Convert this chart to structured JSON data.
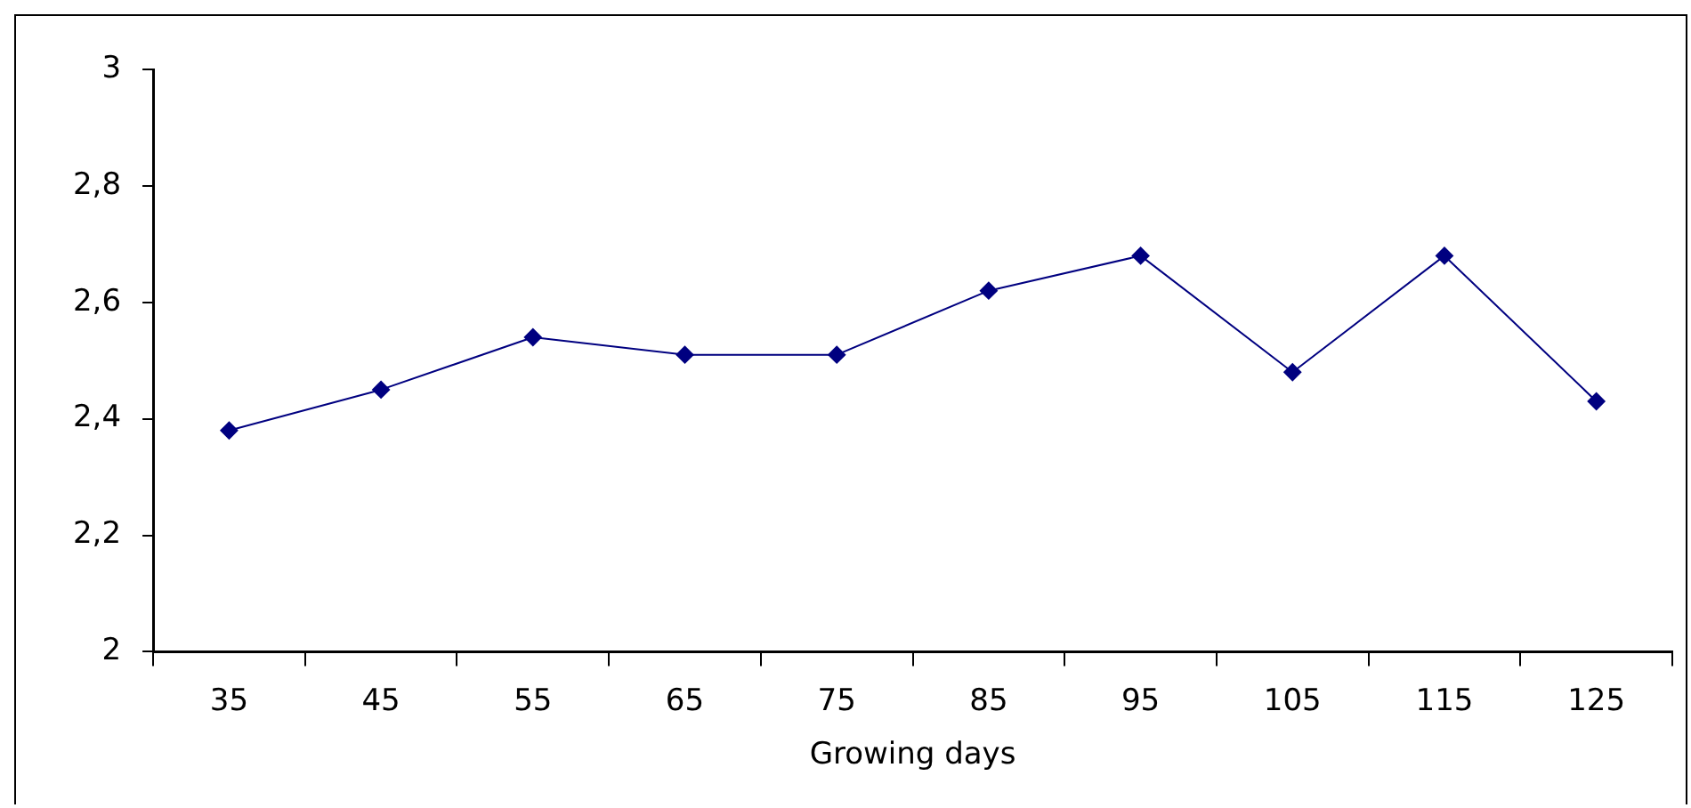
{
  "chart_data": {
    "type": "line",
    "xlabel": "Growing days",
    "categories": [
      "35",
      "45",
      "55",
      "65",
      "75",
      "85",
      "95",
      "105",
      "115",
      "125"
    ],
    "series": [
      {
        "color": "#000080",
        "values": [
          2.38,
          2.45,
          2.54,
          2.51,
          2.51,
          2.62,
          2.68,
          2.48,
          2.68,
          2.43
        ]
      }
    ],
    "ylim": [
      2,
      3
    ],
    "yticks": [
      2,
      {
        "value": 2.2,
        "label": "2,2"
      },
      {
        "value": 2.4,
        "label": "2,4"
      },
      {
        "value": 2.6,
        "label": "2,6"
      },
      {
        "value": 2.8,
        "label": "2,8"
      },
      3
    ],
    "grid": false,
    "legend": false,
    "marker": "diamond",
    "line_style": "solid"
  }
}
